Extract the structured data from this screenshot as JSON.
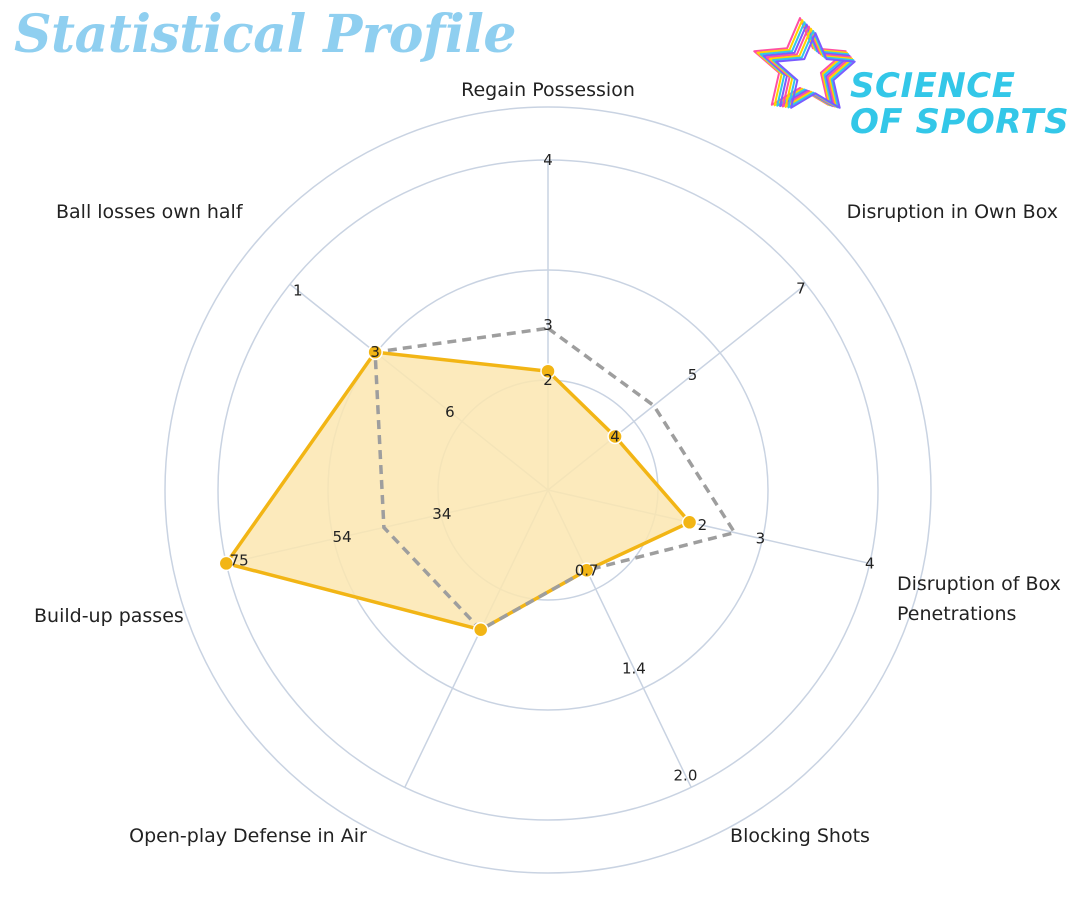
{
  "title": "Statistical Profile",
  "logo": {
    "line1": "SCIENCE",
    "line2": "OF SPORTS",
    "icon": "star-icon",
    "colors": [
      "#ff4fa3",
      "#ffd400",
      "#33c7e8",
      "#7a5cff"
    ]
  },
  "chart_data": {
    "type": "radar",
    "title": "Statistical Profile",
    "grid": true,
    "axes": [
      {
        "name": "Regain Possession",
        "tick_labels": [
          "2",
          "3",
          "4"
        ]
      },
      {
        "name": "Disruption in Own Box",
        "tick_labels": [
          "4",
          "5",
          "7"
        ]
      },
      {
        "name": "Disruption of Box Penetrations",
        "tick_labels": [
          "2",
          "3",
          "4"
        ]
      },
      {
        "name": "Blocking Shots",
        "tick_labels": [
          "0.7",
          "1.4",
          "2.0"
        ]
      },
      {
        "name": "Open-play Defense in Air",
        "tick_labels": []
      },
      {
        "name": "Build-up passes",
        "tick_labels": [
          "34",
          "54",
          "75"
        ]
      },
      {
        "name": "Ball losses own half",
        "tick_labels": [
          "6",
          "3",
          "1"
        ]
      }
    ],
    "series": [
      {
        "style": "filled",
        "color": "#f2b515",
        "fill": "#fbe6b0",
        "values": [
          0.36,
          0.26,
          0.44,
          0.27,
          0.47,
          1.0,
          0.67
        ]
      },
      {
        "style": "dashed",
        "color": "#9e9e9e",
        "values": [
          0.49,
          0.41,
          0.58,
          0.27,
          0.47,
          0.51,
          0.67
        ]
      }
    ]
  }
}
